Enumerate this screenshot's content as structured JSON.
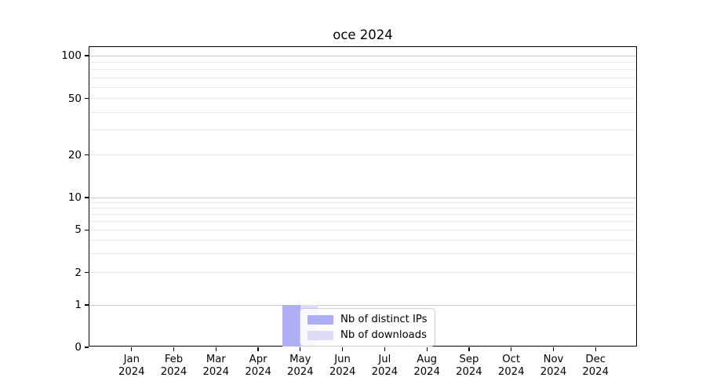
{
  "title": "oce 2024",
  "chart_data": {
    "type": "bar",
    "title": "oce 2024",
    "categories": [
      "Jan 2024",
      "Feb 2024",
      "Mar 2024",
      "Apr 2024",
      "May 2024",
      "Jun 2024",
      "Jul 2024",
      "Aug 2024",
      "Sep 2024",
      "Oct 2024",
      "Nov 2024",
      "Dec 2024"
    ],
    "series": [
      {
        "name": "Nb of distinct IPs",
        "color": "#aeaef6",
        "values": [
          0,
          0,
          0,
          0,
          1,
          0,
          0,
          0,
          0,
          0,
          0,
          0
        ]
      },
      {
        "name": "Nb of downloads",
        "color": "#dcdcf8",
        "values": [
          0,
          0,
          0,
          0,
          1,
          0,
          0,
          0,
          0,
          0,
          0,
          0
        ]
      }
    ],
    "xlabel": "",
    "ylabel": "",
    "y_axis": {
      "scale": "symlog",
      "tick_values": [
        0,
        1,
        2,
        5,
        10,
        20,
        50,
        100
      ],
      "tick_labels": [
        "0",
        "1",
        "2",
        "5",
        "10",
        "20",
        "50",
        "100"
      ],
      "range": [
        0,
        120
      ]
    },
    "grid": "on",
    "legend": {
      "position": "lower center, over May bars",
      "entries": [
        "Nb of distinct IPs",
        "Nb of downloads"
      ]
    }
  },
  "colors": {
    "background": "#ffffff",
    "spine": "#000000",
    "decade_gridline": "#c8c8c8",
    "minor_gridline": "#ebebeb",
    "bar_distinct_ips": "#aeaef6",
    "bar_downloads": "#dcdcf8",
    "legend_border": "#cccccc"
  }
}
